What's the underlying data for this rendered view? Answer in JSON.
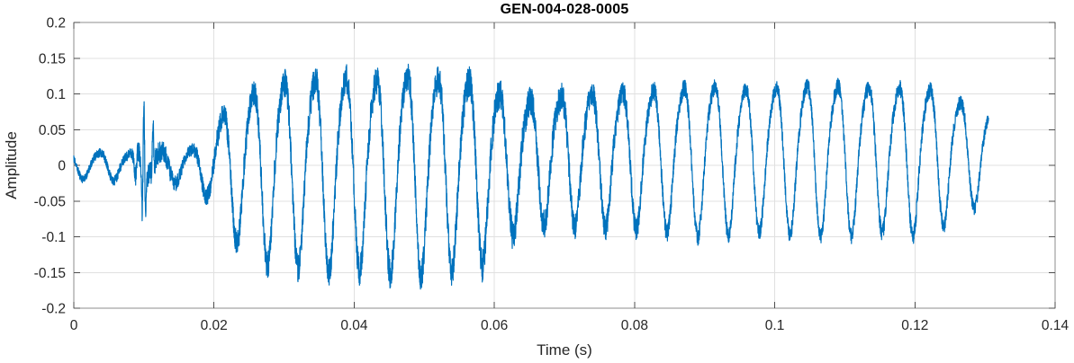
{
  "window": {
    "background": "#ffffff"
  },
  "chart_data": {
    "type": "line",
    "title": "GEN-004-028-0005",
    "xlabel": "Time (s)",
    "ylabel": "Amplitude",
    "xlim": [
      0,
      0.14
    ],
    "ylim": [
      -0.2,
      0.2
    ],
    "xticks": [
      0,
      0.02,
      0.04,
      0.06,
      0.08,
      0.1,
      0.12,
      0.14
    ],
    "xtick_labels": [
      "0",
      "0.02",
      "0.04",
      "0.06",
      "0.08",
      "0.1",
      "0.12",
      "0.14"
    ],
    "yticks": [
      -0.2,
      -0.15,
      -0.1,
      -0.05,
      0,
      0.05,
      0.1,
      0.15,
      0.2
    ],
    "ytick_labels": [
      "-0.2",
      "-0.15",
      "-0.1",
      "-0.05",
      "0",
      "0.05",
      "0.1",
      "0.15",
      "0.2"
    ],
    "grid": true,
    "legend": null,
    "line_color": "#0072BD",
    "series": [
      {
        "name": "GEN-004-028-0005",
        "description": "Vibration time waveform: low-level noise from 0 to ~0.018 s with a sharp transient spike (peak ~0.128) at 0.010 s, then a sustained noisy ~228 Hz oscillation burst from ~0.019 s to ~0.1305 s. Maximum positive peak ~0.16 near t=0.049 s, maximum negative ~-0.155 near t=0.039 s; envelope dips to ~0.09 around 0.062-0.075 s, holds ~0.10-0.12 from 0.08-0.125 s, trace ends rising at ~+0.065 at t~0.1305 s.",
        "signal": {
          "duration_s": 0.1305,
          "carrier_hz": 228,
          "carrier_phase_rad": 2.74,
          "harmonic2_ratio": 0.15,
          "harmonic2_phase_rad": 2.2,
          "samples": 6600,
          "seed": 20240,
          "envelope_t_amp": [
            [
              0.0,
              0.016
            ],
            [
              0.004,
              0.02
            ],
            [
              0.008,
              0.018
            ],
            [
              0.013,
              0.022
            ],
            [
              0.017,
              0.024
            ],
            [
              0.019,
              0.04
            ],
            [
              0.021,
              0.075
            ],
            [
              0.024,
              0.105
            ],
            [
              0.028,
              0.125
            ],
            [
              0.033,
              0.13
            ],
            [
              0.038,
              0.135
            ],
            [
              0.043,
              0.13
            ],
            [
              0.048,
              0.14
            ],
            [
              0.053,
              0.132
            ],
            [
              0.058,
              0.128
            ],
            [
              0.062,
              0.095
            ],
            [
              0.066,
              0.085
            ],
            [
              0.071,
              0.09
            ],
            [
              0.076,
              0.092
            ],
            [
              0.081,
              0.095
            ],
            [
              0.086,
              0.1
            ],
            [
              0.091,
              0.105
            ],
            [
              0.096,
              0.098
            ],
            [
              0.101,
              0.1
            ],
            [
              0.106,
              0.105
            ],
            [
              0.111,
              0.103
            ],
            [
              0.116,
              0.098
            ],
            [
              0.12,
              0.104
            ],
            [
              0.124,
              0.092
            ],
            [
              0.127,
              0.075
            ],
            [
              0.1305,
              0.062
            ]
          ],
          "noise_t_amp": [
            [
              0.0,
              0.005
            ],
            [
              0.008,
              0.007
            ],
            [
              0.0095,
              0.018
            ],
            [
              0.013,
              0.014
            ],
            [
              0.016,
              0.008
            ],
            [
              0.021,
              0.016
            ],
            [
              0.03,
              0.02
            ],
            [
              0.04,
              0.021
            ],
            [
              0.05,
              0.02
            ],
            [
              0.058,
              0.022
            ],
            [
              0.068,
              0.02
            ],
            [
              0.075,
              0.018
            ],
            [
              0.085,
              0.013
            ],
            [
              0.095,
              0.011
            ],
            [
              0.11,
              0.011
            ],
            [
              0.12,
              0.012
            ],
            [
              0.1305,
              0.009
            ]
          ],
          "offset_t_v": [
            [
              0.0,
              0.0
            ],
            [
              0.058,
              0.0
            ],
            [
              0.068,
              0.016
            ],
            [
              0.1305,
              0.018
            ]
          ],
          "transients": [
            {
              "t0_s": 0.01,
              "amp": 0.11,
              "sigma_s": 0.00028,
              "freq_hz": 1700,
              "phase_rad": 1.5708
            },
            {
              "t0_s": 0.0113,
              "amp": 0.05,
              "sigma_s": 0.00022,
              "freq_hz": 1500,
              "phase_rad": 1.5708
            },
            {
              "t0_s": 0.009,
              "amp": 0.035,
              "sigma_s": 0.0005,
              "freq_hz": 800,
              "phase_rad": 0
            }
          ]
        }
      }
    ]
  },
  "colors": {
    "line": "#0072BD",
    "grid": "#e0e0e0",
    "box": "#8c8c8c",
    "tick": "#4d4d4d",
    "tick_label": "#262626",
    "axis_label": "#262626",
    "title": "#000000",
    "background": "#ffffff"
  }
}
